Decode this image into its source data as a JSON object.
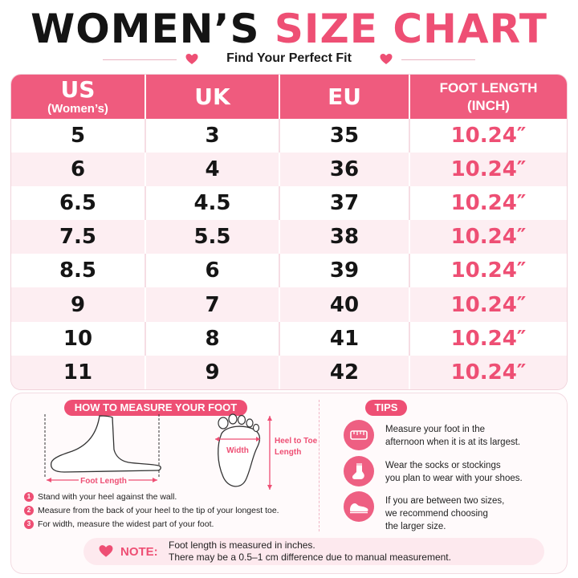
{
  "header": {
    "title_part1": "WOMEN’S",
    "title_part2": "SIZE CHART",
    "subtitle": "Find Your Perfect Fit"
  },
  "table": {
    "headers": [
      {
        "main": "US",
        "sub": "(Women’s)"
      },
      {
        "main": "UK",
        "sub": ""
      },
      {
        "main": "EU",
        "sub": ""
      },
      {
        "main": "FOOT LENGTH",
        "sub": "(INCH)"
      }
    ],
    "rows": [
      {
        "us": "5",
        "uk": "3",
        "eu": "35",
        "length": "10.24″"
      },
      {
        "us": "6",
        "uk": "4",
        "eu": "36",
        "length": "10.24″"
      },
      {
        "us": "6.5",
        "uk": "4.5",
        "eu": "37",
        "length": "10.24″"
      },
      {
        "us": "7.5",
        "uk": "5.5",
        "eu": "38",
        "length": "10.24″"
      },
      {
        "us": "8.5",
        "uk": "6",
        "eu": "39",
        "length": "10.24″"
      },
      {
        "us": "9",
        "uk": "7",
        "eu": "40",
        "length": "10.24″"
      },
      {
        "us": "10",
        "uk": "8",
        "eu": "41",
        "length": "10.24″"
      },
      {
        "us": "11",
        "uk": "9",
        "eu": "42",
        "length": "10.24″"
      }
    ]
  },
  "measure": {
    "title": "HOW TO MEASURE YOUR FOOT",
    "foot_length_label": "Foot Length",
    "width_label": "Width",
    "heel_to_toe_label_1": "Heel to Toe",
    "heel_to_toe_label_2": "Length",
    "steps": [
      {
        "num": "1",
        "text": "Stand with your heel against the wall."
      },
      {
        "num": "2",
        "text": "Measure from the back of your heel to the tip of your longest toe."
      },
      {
        "num": "3",
        "text": "For width, measure the widest part of your foot."
      }
    ]
  },
  "tips": {
    "title": "TIPS",
    "items": [
      {
        "icon": "tape-measure-icon",
        "line1": "Measure your foot in the",
        "line2": "afternoon when it is at its largest."
      },
      {
        "icon": "sock-icon",
        "line1": "Wear the socks or stockings",
        "line2": "you plan to wear with your shoes."
      },
      {
        "icon": "shoe-icon",
        "line1": "If you are between two sizes,",
        "line2": "we recommend choosing",
        "line3": "the larger size."
      }
    ]
  },
  "note": {
    "label": "NOTE:",
    "line1": "Foot length is measured in inches.",
    "line2": "There may be a 0.5–1 cm difference due to manual measurement."
  },
  "colors": {
    "accent": "#ee4f74",
    "header_bg": "#ef5b7e",
    "row_alt": "#fdeef2"
  }
}
